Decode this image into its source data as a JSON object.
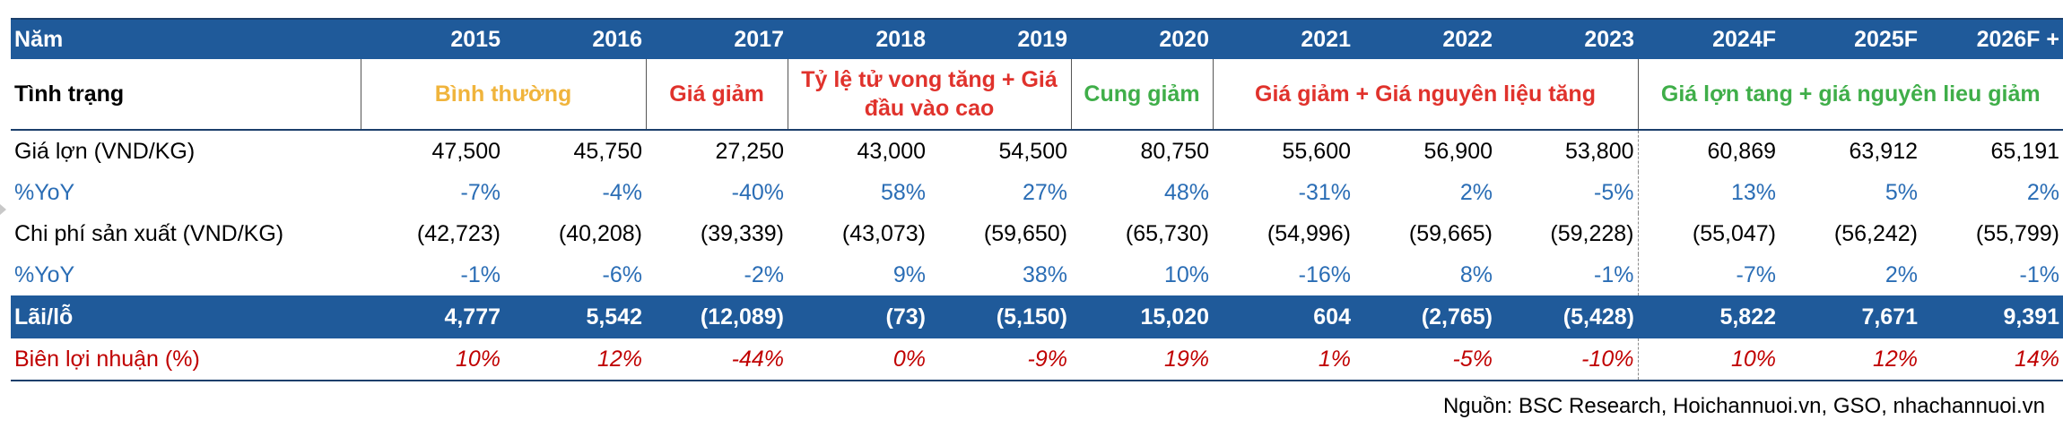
{
  "header": {
    "label": "Năm",
    "years": [
      "2015",
      "2016",
      "2017",
      "2018",
      "2019",
      "2020",
      "2021",
      "2022",
      "2023",
      "2024F",
      "2025F",
      "2026F +"
    ]
  },
  "status": {
    "label": "Tình trạng",
    "groups": [
      {
        "text": "Bình thường",
        "color": "#f0b43c"
      },
      {
        "text": "Giá giảm",
        "color": "#e0322c"
      },
      {
        "text": "Tỷ lệ tử vong tăng + Giá đầu vào cao",
        "color": "#e0322c"
      },
      {
        "text": "Cung giảm",
        "color": "#3fae49"
      },
      {
        "text": "Giá giảm + Giá nguyên liệu tăng",
        "color": "#e0322c"
      },
      {
        "text": "Giá lợn tang + giá nguyên lieu giảm",
        "color": "#3fae49"
      }
    ]
  },
  "rows": {
    "price": {
      "label": "Giá lợn (VND/KG)",
      "values": [
        "47,500",
        "45,750",
        "27,250",
        "43,000",
        "54,500",
        "80,750",
        "55,600",
        "56,900",
        "53,800",
        "60,869",
        "63,912",
        "65,191"
      ]
    },
    "price_yoy": {
      "label": "%YoY",
      "values": [
        "-7%",
        "-4%",
        "-40%",
        "58%",
        "27%",
        "48%",
        "-31%",
        "2%",
        "-5%",
        "13%",
        "5%",
        "2%"
      ]
    },
    "cost": {
      "label": "Chi phí sản xuất (VND/KG)",
      "values": [
        "(42,723)",
        "(40,208)",
        "(39,339)",
        "(43,073)",
        "(59,650)",
        "(65,730)",
        "(54,996)",
        "(59,665)",
        "(59,228)",
        "(55,047)",
        "(56,242)",
        "(55,799)"
      ]
    },
    "cost_yoy": {
      "label": "%YoY",
      "values": [
        "-1%",
        "-6%",
        "-2%",
        "9%",
        "38%",
        "10%",
        "-16%",
        "8%",
        "-1%",
        "-7%",
        "2%",
        "-1%"
      ]
    },
    "profit": {
      "label": "Lãi/lỗ",
      "values": [
        "4,777",
        "5,542",
        "(12,089)",
        "(73)",
        "(5,150)",
        "15,020",
        "604",
        "(2,765)",
        "(5,428)",
        "5,822",
        "7,671",
        "9,391"
      ]
    },
    "margin": {
      "label": "Biên lợi nhuận (%)",
      "values": [
        "10%",
        "12%",
        "-44%",
        "0%",
        "-9%",
        "19%",
        "1%",
        "-5%",
        "-10%",
        "10%",
        "12%",
        "14%"
      ]
    }
  },
  "source": "Nguồn: BSC Research, Hoichannuoi.vn, GSO, nhachannuoi.vn",
  "colors": {
    "header_bg": "#1f5a9a",
    "yoy_text": "#2a6db5",
    "margin_text": "#c00000"
  }
}
